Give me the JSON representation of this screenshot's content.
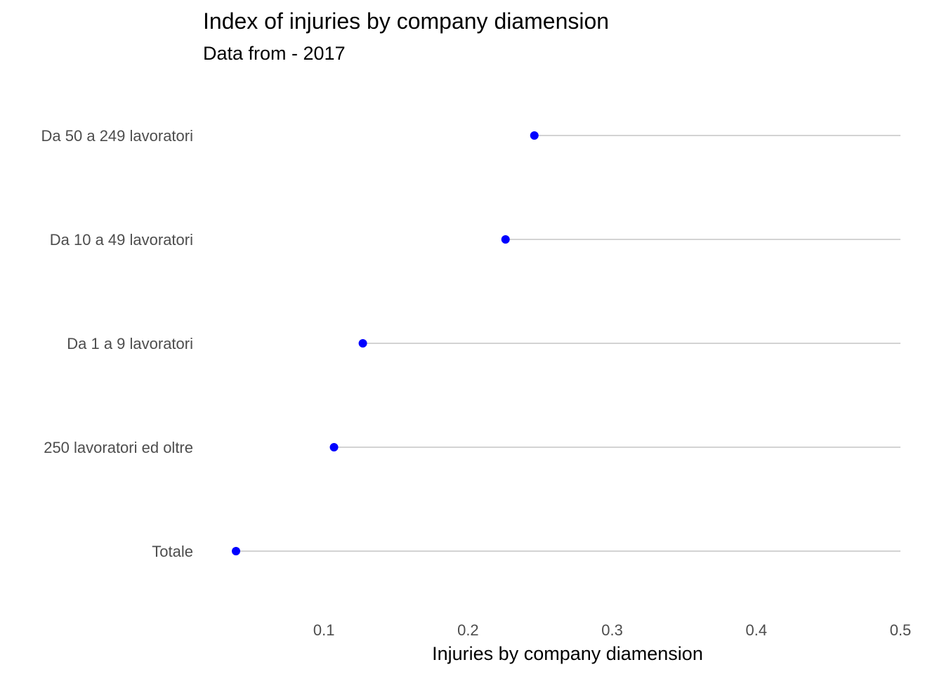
{
  "chart_data": {
    "type": "scatter",
    "style": "lollipop",
    "title": "Index of injuries by company diamension",
    "subtitle": "Data  from - 2017",
    "xlabel": "Injuries by company diamension",
    "ylabel": "",
    "categories": [
      "Da 50 a 249 lavoratori",
      "Da 10 a 49 lavoratori",
      "Da 1 a 9 lavoratori",
      "250 lavoratori ed oltre",
      "Totale"
    ],
    "values": [
      0.246,
      0.226,
      0.127,
      0.107,
      0.039
    ],
    "xlim": [
      0.039,
      0.5
    ],
    "xticks": [
      0.1,
      0.2,
      0.3,
      0.4,
      0.5
    ],
    "xtick_labels": [
      "0.1",
      "0.2",
      "0.3",
      "0.4",
      "0.5"
    ],
    "grid": false,
    "point_color": "#0000ff",
    "segment_color": "#d3d3d3",
    "label_color": "#4d4d4d"
  }
}
